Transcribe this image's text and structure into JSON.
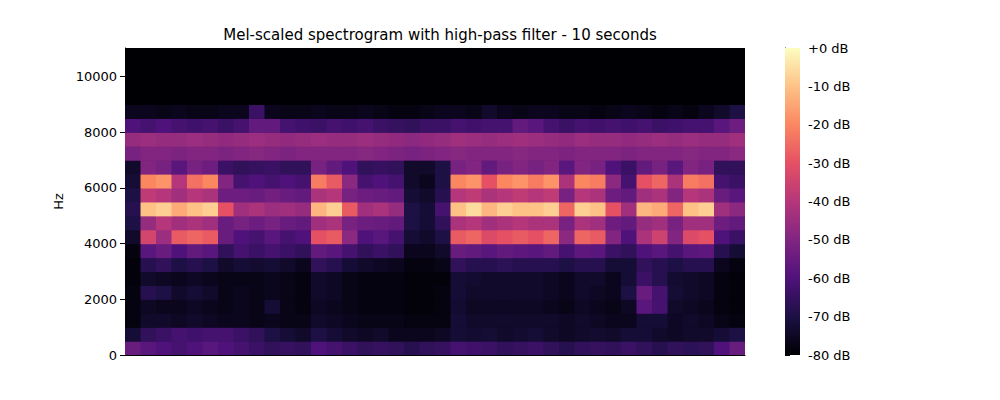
{
  "chart_data": {
    "type": "heatmap",
    "title": "Mel-scaled spectrogram with high-pass filter - 10 seconds",
    "ylabel": "Hz",
    "color": "magma",
    "tick_labels": "y",
    "xlim": [
      0,
      10
    ],
    "ylim": [
      0,
      11025
    ],
    "yticks": [
      0,
      2000,
      4000,
      6000,
      8000,
      10000
    ],
    "x": [
      0.125,
      0.375,
      0.625,
      0.875,
      1.125,
      1.375,
      1.625,
      1.875,
      2.125,
      2.375,
      2.625,
      2.875,
      3.125,
      3.375,
      3.625,
      3.875,
      4.125,
      4.375,
      4.625,
      4.875,
      5.125,
      5.375,
      5.625,
      5.875,
      6.125,
      6.375,
      6.625,
      6.875,
      7.125,
      7.375,
      7.625,
      7.875,
      8.125,
      8.375,
      8.625,
      8.875,
      9.125,
      9.375,
      9.625,
      9.875
    ],
    "y": [
      250,
      750,
      1250,
      1750,
      2250,
      2750,
      3250,
      3750,
      4250,
      4750,
      5250,
      5750,
      6250,
      6750,
      7250,
      7750,
      8250,
      8750,
      9250,
      9750,
      10250,
      10750
    ],
    "z": [
      [
        -55,
        -58,
        -60,
        -62,
        -60,
        -58,
        -60,
        -62,
        -64,
        -66,
        -65,
        -66,
        -60,
        -62,
        -64,
        -66,
        -65,
        -66,
        -68,
        -66,
        -65,
        -62,
        -63,
        -64,
        -66,
        -65,
        -64,
        -66,
        -68,
        -66,
        -65,
        -66,
        -64,
        -66,
        -68,
        -66,
        -67,
        -66,
        -60,
        -55
      ],
      [
        -72,
        -66,
        -64,
        -62,
        -63,
        -62,
        -62,
        -64,
        -66,
        -70,
        -72,
        -74,
        -70,
        -72,
        -74,
        -75,
        -74,
        -76,
        -76,
        -76,
        -75,
        -72,
        -73,
        -72,
        -74,
        -73,
        -72,
        -74,
        -75,
        -74,
        -73,
        -74,
        -72,
        -72,
        -74,
        -75,
        -74,
        -74,
        -72,
        -70
      ],
      [
        -78,
        -74,
        -74,
        -75,
        -74,
        -75,
        -76,
        -76,
        -77,
        -76,
        -77,
        -77,
        -74,
        -75,
        -76,
        -77,
        -77,
        -77,
        -78,
        -78,
        -78,
        -72,
        -74,
        -74,
        -74,
        -74,
        -74,
        -74,
        -75,
        -74,
        -75,
        -76,
        -76,
        -72,
        -72,
        -75,
        -74,
        -75,
        -77,
        -78
      ],
      [
        -78,
        -75,
        -76,
        -76,
        -75,
        -76,
        -77,
        -76,
        -77,
        -72,
        -77,
        -78,
        -75,
        -76,
        -77,
        -78,
        -78,
        -78,
        -79,
        -79,
        -78,
        -73,
        -75,
        -75,
        -75,
        -75,
        -75,
        -76,
        -77,
        -75,
        -76,
        -77,
        -75,
        -58,
        -62,
        -74,
        -75,
        -76,
        -78,
        -79
      ],
      [
        -78,
        -68,
        -70,
        -74,
        -72,
        -74,
        -77,
        -76,
        -77,
        -76,
        -77,
        -78,
        -74,
        -75,
        -77,
        -78,
        -78,
        -78,
        -79,
        -79,
        -78,
        -72,
        -74,
        -74,
        -74,
        -74,
        -74,
        -75,
        -76,
        -74,
        -75,
        -76,
        -70,
        -55,
        -62,
        -72,
        -74,
        -75,
        -78,
        -79
      ],
      [
        -79,
        -74,
        -75,
        -76,
        -75,
        -76,
        -77,
        -77,
        -77,
        -76,
        -77,
        -78,
        -74,
        -75,
        -77,
        -78,
        -78,
        -78,
        -79,
        -79,
        -79,
        -72,
        -73,
        -74,
        -74,
        -74,
        -74,
        -75,
        -76,
        -74,
        -74,
        -76,
        -72,
        -64,
        -68,
        -73,
        -74,
        -75,
        -78,
        -79
      ],
      [
        -79,
        -68,
        -66,
        -70,
        -68,
        -70,
        -74,
        -72,
        -73,
        -72,
        -74,
        -76,
        -66,
        -68,
        -72,
        -74,
        -75,
        -76,
        -78,
        -78,
        -77,
        -66,
        -68,
        -68,
        -67,
        -68,
        -68,
        -68,
        -70,
        -68,
        -68,
        -72,
        -72,
        -66,
        -68,
        -70,
        -68,
        -68,
        -76,
        -78
      ],
      [
        -78,
        -58,
        -55,
        -60,
        -56,
        -58,
        -66,
        -62,
        -64,
        -62,
        -64,
        -66,
        -56,
        -58,
        -62,
        -66,
        -64,
        -66,
        -76,
        -76,
        -74,
        -55,
        -56,
        -58,
        -56,
        -57,
        -58,
        -56,
        -62,
        -57,
        -58,
        -64,
        -66,
        -60,
        -58,
        -62,
        -58,
        -57,
        -68,
        -72
      ],
      [
        -74,
        -34,
        -45,
        -28,
        -26,
        -28,
        -55,
        -60,
        -62,
        -58,
        -62,
        -60,
        -30,
        -28,
        -48,
        -60,
        -58,
        -62,
        -72,
        -74,
        -70,
        -28,
        -26,
        -32,
        -30,
        -28,
        -30,
        -26,
        -48,
        -26,
        -28,
        -50,
        -60,
        -42,
        -35,
        -50,
        -32,
        -30,
        -60,
        -64
      ],
      [
        -70,
        -46,
        -40,
        -44,
        -42,
        -44,
        -55,
        -52,
        -54,
        -52,
        -55,
        -56,
        -44,
        -42,
        -52,
        -54,
        -55,
        -56,
        -70,
        -72,
        -66,
        -42,
        -40,
        -44,
        -42,
        -40,
        -42,
        -42,
        -52,
        -42,
        -44,
        -54,
        -56,
        -46,
        -44,
        -52,
        -44,
        -44,
        -54,
        -56
      ],
      [
        -68,
        -10,
        -8,
        -14,
        -10,
        -8,
        -30,
        -44,
        -42,
        -45,
        -44,
        -46,
        -12,
        -8,
        -28,
        -44,
        -42,
        -46,
        -70,
        -72,
        -62,
        -10,
        -6,
        -12,
        -8,
        -10,
        -10,
        -8,
        -26,
        -8,
        -10,
        -30,
        -44,
        -12,
        -14,
        -26,
        -10,
        -8,
        -44,
        -48
      ],
      [
        -70,
        -38,
        -40,
        -44,
        -40,
        -42,
        -54,
        -54,
        -55,
        -53,
        -55,
        -56,
        -42,
        -40,
        -52,
        -54,
        -55,
        -56,
        -72,
        -74,
        -68,
        -40,
        -38,
        -42,
        -40,
        -38,
        -40,
        -38,
        -52,
        -40,
        -42,
        -54,
        -56,
        -44,
        -42,
        -50,
        -40,
        -42,
        -55,
        -58
      ],
      [
        -72,
        -20,
        -18,
        -40,
        -24,
        -20,
        -50,
        -62,
        -60,
        -62,
        -60,
        -62,
        -22,
        -28,
        -48,
        -62,
        -60,
        -62,
        -74,
        -76,
        -70,
        -20,
        -18,
        -30,
        -20,
        -18,
        -22,
        -18,
        -42,
        -20,
        -22,
        -48,
        -62,
        -30,
        -26,
        -42,
        -22,
        -24,
        -62,
        -64
      ],
      [
        -74,
        -50,
        -52,
        -58,
        -52,
        -54,
        -64,
        -66,
        -65,
        -64,
        -66,
        -66,
        -52,
        -56,
        -60,
        -66,
        -65,
        -66,
        -74,
        -74,
        -70,
        -52,
        -50,
        -56,
        -52,
        -50,
        -52,
        -50,
        -58,
        -50,
        -52,
        -60,
        -64,
        -56,
        -52,
        -58,
        -50,
        -52,
        -66,
        -66
      ],
      [
        -52,
        -50,
        -50,
        -51,
        -50,
        -50,
        -51,
        -50,
        -49,
        -50,
        -51,
        -50,
        -50,
        -50,
        -50,
        -49,
        -50,
        -51,
        -52,
        -51,
        -50,
        -49,
        -50,
        -50,
        -50,
        -49,
        -50,
        -50,
        -51,
        -50,
        -50,
        -50,
        -51,
        -50,
        -50,
        -50,
        -49,
        -50,
        -50,
        -48
      ],
      [
        -46,
        -45,
        -46,
        -46,
        -45,
        -46,
        -47,
        -46,
        -45,
        -46,
        -47,
        -46,
        -45,
        -46,
        -46,
        -45,
        -46,
        -47,
        -48,
        -47,
        -46,
        -44,
        -45,
        -46,
        -45,
        -44,
        -45,
        -46,
        -47,
        -45,
        -46,
        -46,
        -47,
        -46,
        -45,
        -46,
        -45,
        -46,
        -46,
        -44
      ],
      [
        -60,
        -62,
        -60,
        -62,
        -63,
        -62,
        -64,
        -62,
        -56,
        -56,
        -62,
        -63,
        -64,
        -62,
        -63,
        -62,
        -64,
        -65,
        -66,
        -64,
        -64,
        -62,
        -63,
        -62,
        -62,
        -56,
        -58,
        -62,
        -64,
        -62,
        -63,
        -62,
        -63,
        -62,
        -64,
        -63,
        -62,
        -62,
        -58,
        -54
      ],
      [
        -76,
        -76,
        -77,
        -76,
        -77,
        -77,
        -76,
        -76,
        -64,
        -76,
        -77,
        -77,
        -76,
        -77,
        -77,
        -76,
        -77,
        -78,
        -78,
        -77,
        -76,
        -76,
        -77,
        -74,
        -76,
        -77,
        -76,
        -76,
        -77,
        -77,
        -78,
        -77,
        -76,
        -77,
        -78,
        -77,
        -78,
        -76,
        -74,
        -70
      ],
      [
        -80,
        -80,
        -80,
        -80,
        -80,
        -80,
        -80,
        -80,
        -80,
        -80,
        -80,
        -80,
        -80,
        -80,
        -80,
        -80,
        -80,
        -80,
        -80,
        -80,
        -80,
        -80,
        -80,
        -80,
        -80,
        -80,
        -80,
        -80,
        -80,
        -80,
        -80,
        -80,
        -80,
        -80,
        -80,
        -80,
        -80,
        -80,
        -80,
        -80
      ],
      [
        -80,
        -80,
        -80,
        -80,
        -80,
        -80,
        -80,
        -80,
        -80,
        -80,
        -80,
        -80,
        -80,
        -80,
        -80,
        -80,
        -80,
        -80,
        -80,
        -80,
        -80,
        -80,
        -80,
        -80,
        -80,
        -80,
        -80,
        -80,
        -80,
        -80,
        -80,
        -80,
        -80,
        -80,
        -80,
        -80,
        -80,
        -80,
        -80,
        -80
      ],
      [
        -80,
        -80,
        -80,
        -80,
        -80,
        -80,
        -80,
        -80,
        -80,
        -80,
        -80,
        -80,
        -80,
        -80,
        -80,
        -80,
        -80,
        -80,
        -80,
        -80,
        -80,
        -80,
        -80,
        -80,
        -80,
        -80,
        -80,
        -80,
        -80,
        -80,
        -80,
        -80,
        -80,
        -80,
        -80,
        -80,
        -80,
        -80,
        -80,
        -80
      ],
      [
        -80,
        -80,
        -80,
        -80,
        -80,
        -80,
        -80,
        -80,
        -80,
        -80,
        -80,
        -80,
        -80,
        -80,
        -80,
        -80,
        -80,
        -80,
        -80,
        -80,
        -80,
        -80,
        -80,
        -80,
        -80,
        -80,
        -80,
        -80,
        -80,
        -80,
        -80,
        -80,
        -80,
        -80,
        -80,
        -80,
        -80,
        -80,
        -80,
        -80
      ]
    ],
    "colorbar": {
      "range": [
        -80,
        0
      ],
      "ticks": [
        {
          "value": -80,
          "label": "-80 dB"
        },
        {
          "value": -70,
          "label": "-70 dB"
        },
        {
          "value": -60,
          "label": "-60 dB"
        },
        {
          "value": -50,
          "label": "-50 dB"
        },
        {
          "value": -40,
          "label": "-40 dB"
        },
        {
          "value": -30,
          "label": "-30 dB"
        },
        {
          "value": -20,
          "label": "-20 dB"
        },
        {
          "value": -10,
          "label": "-10 dB"
        },
        {
          "value": 0,
          "label": "+0 dB"
        }
      ]
    }
  }
}
